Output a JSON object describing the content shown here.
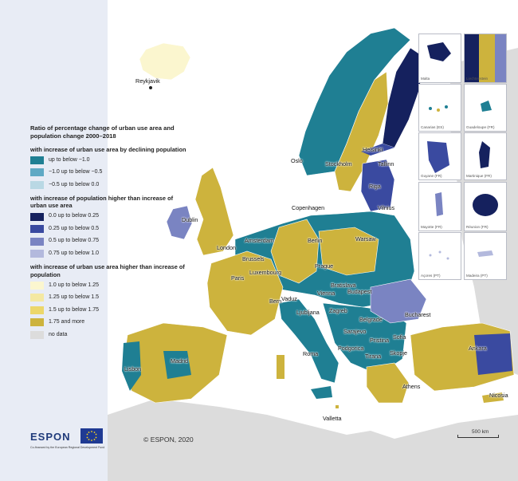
{
  "legend": {
    "title": "Ratio of percentage change of urban use area and population change 2000–2018",
    "group1_title": "with increase of urban use area by declining population",
    "group1": [
      {
        "label": "up to below −1.0",
        "color": "#1f7f93"
      },
      {
        "label": "−1.0 up to below −0.5",
        "color": "#5fa9c4"
      },
      {
        "label": "−0.5 up to below  0.0",
        "color": "#b9d8e4"
      }
    ],
    "group2_title": "with increase of population higher than increase of urban use area",
    "group2": [
      {
        "label": "0.0 up to below  0.25",
        "color": "#15215e"
      },
      {
        "label": "0.25 up to below  0.5",
        "color": "#3a4aa0"
      },
      {
        "label": "0.5 up to below 0.75",
        "color": "#7a84c2"
      },
      {
        "label": "0.75 up to below  1.0",
        "color": "#b3b9dd"
      }
    ],
    "group3_title": "with increase of urban use area higher than increase of population",
    "group3": [
      {
        "label": "1.0 up to below 1.25",
        "color": "#fbf6cf"
      },
      {
        "label": "1.25 up to below  1.5",
        "color": "#f4e8a2"
      },
      {
        "label": "1.5 up to below 1.75",
        "color": "#ecd76a"
      },
      {
        "label": "1.75 and more",
        "color": "#cdb33d"
      }
    ],
    "nodata": {
      "label": "no data",
      "color": "#dcdcdc"
    }
  },
  "cities": [
    {
      "name": "Reykjavik"
    },
    {
      "name": "Helsinki"
    },
    {
      "name": "Oslo"
    },
    {
      "name": "Stockholm"
    },
    {
      "name": "Tallinn"
    },
    {
      "name": "Riga"
    },
    {
      "name": "Dublin"
    },
    {
      "name": "Copenhagen"
    },
    {
      "name": "Vilnius"
    },
    {
      "name": "Amsterdam"
    },
    {
      "name": "Berlin"
    },
    {
      "name": "London"
    },
    {
      "name": "Warsaw"
    },
    {
      "name": "Brussels"
    },
    {
      "name": "Luxembourg"
    },
    {
      "name": "Prague"
    },
    {
      "name": "Paris"
    },
    {
      "name": "Bratislava"
    },
    {
      "name": "Vienna"
    },
    {
      "name": "Budapest"
    },
    {
      "name": "Bern"
    },
    {
      "name": "Vaduz"
    },
    {
      "name": "Ljubljana"
    },
    {
      "name": "Zagreb"
    },
    {
      "name": "Belgrade"
    },
    {
      "name": "Bucharest"
    },
    {
      "name": "Sarajevo"
    },
    {
      "name": "Pristina"
    },
    {
      "name": "Sofia"
    },
    {
      "name": "Podgorica"
    },
    {
      "name": "Tirana"
    },
    {
      "name": "Skopje"
    },
    {
      "name": "Roma"
    },
    {
      "name": "Madrid"
    },
    {
      "name": "Ankara"
    },
    {
      "name": "Lisbon"
    },
    {
      "name": "Athens"
    },
    {
      "name": "Nicosia"
    },
    {
      "name": "Valletta"
    }
  ],
  "insets": [
    {
      "label": "Malta"
    },
    {
      "label": "Liechtenstein"
    },
    {
      "label": "Canarias (ES)"
    },
    {
      "label": "Guadeloupe (FR)"
    },
    {
      "label": "Guyane (FR)"
    },
    {
      "label": "Martinique (FR)"
    },
    {
      "label": "Mayotte (FR)"
    },
    {
      "label": "Réunion (FR)"
    },
    {
      "label": "Açores (PT)"
    },
    {
      "label": "Madeira (PT)"
    }
  ],
  "copyright": "© ESPON, 2020",
  "scale_label": "500 km",
  "logo": {
    "name": "ESPON",
    "cofinanced": "Co-financed by the European Regional Development Fund"
  },
  "colors": {
    "sea": "#ffffff",
    "land_outside": "#dcdcdc",
    "panel": "#e8ecf5"
  }
}
